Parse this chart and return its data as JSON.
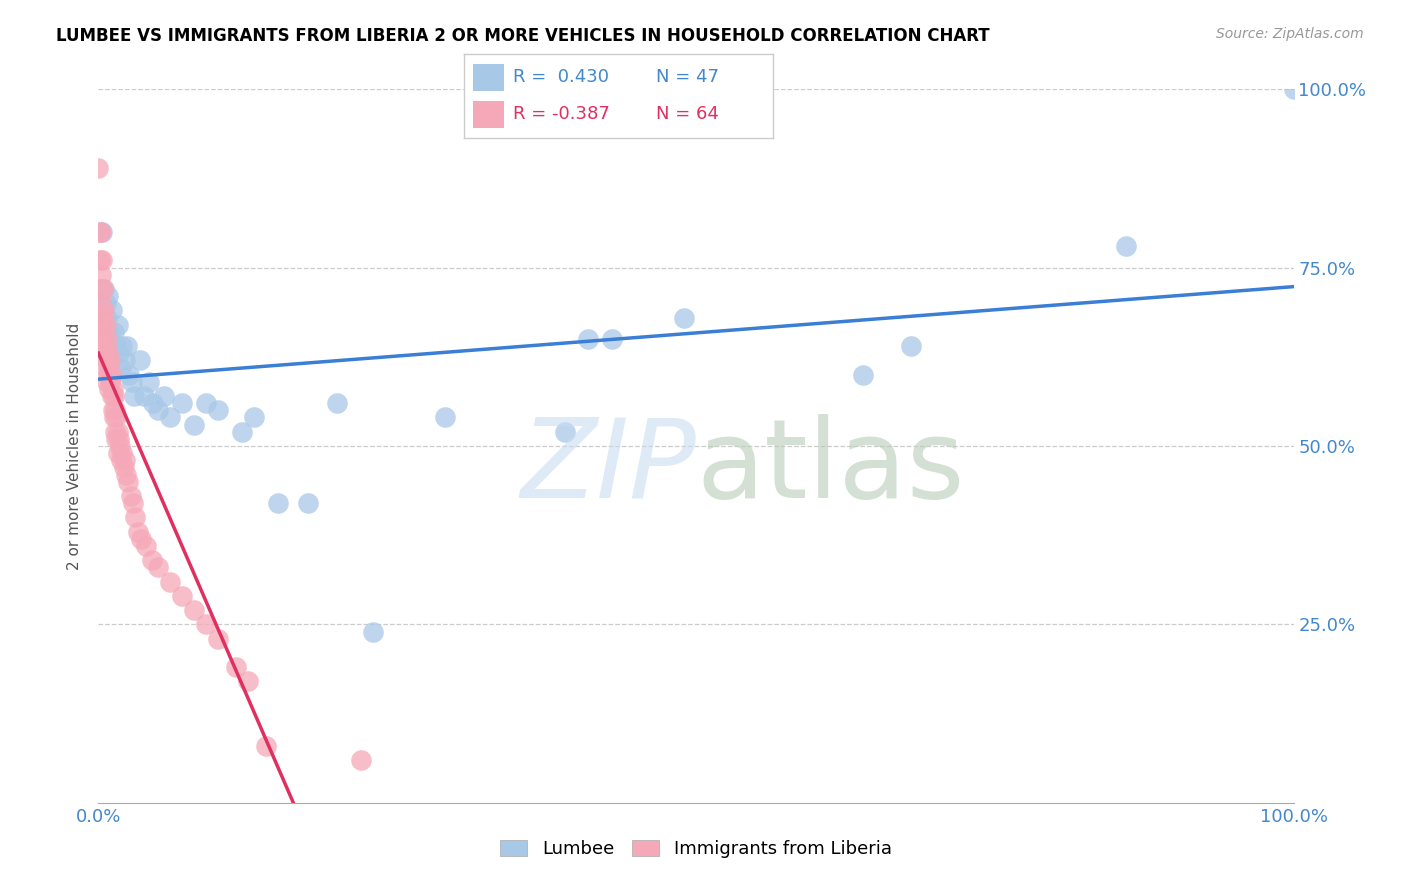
{
  "title": "LUMBEE VS IMMIGRANTS FROM LIBERIA 2 OR MORE VEHICLES IN HOUSEHOLD CORRELATION CHART",
  "source": "Source: ZipAtlas.com",
  "ylabel": "2 or more Vehicles in Household",
  "xlim": [
    0,
    1
  ],
  "ylim": [
    0,
    1
  ],
  "blue_color": "#a8c8e8",
  "pink_color": "#f5a8b8",
  "blue_line_color": "#3a7fd5",
  "pink_line_color": "#e03060",
  "pink_line_dash_color": "#d0a0b0",
  "watermark_zip": "ZIP",
  "watermark_atlas": "atlas",
  "blue_scatter": [
    [
      0.001,
      0.72
    ],
    [
      0.003,
      0.8
    ],
    [
      0.004,
      0.67
    ],
    [
      0.005,
      0.72
    ],
    [
      0.006,
      0.7
    ],
    [
      0.007,
      0.68
    ],
    [
      0.008,
      0.71
    ],
    [
      0.009,
      0.66
    ],
    [
      0.01,
      0.65
    ],
    [
      0.011,
      0.69
    ],
    [
      0.013,
      0.66
    ],
    [
      0.015,
      0.64
    ],
    [
      0.016,
      0.67
    ],
    [
      0.017,
      0.63
    ],
    [
      0.019,
      0.61
    ],
    [
      0.02,
      0.64
    ],
    [
      0.022,
      0.62
    ],
    [
      0.024,
      0.64
    ],
    [
      0.026,
      0.6
    ],
    [
      0.028,
      0.59
    ],
    [
      0.03,
      0.57
    ],
    [
      0.035,
      0.62
    ],
    [
      0.038,
      0.57
    ],
    [
      0.042,
      0.59
    ],
    [
      0.046,
      0.56
    ],
    [
      0.05,
      0.55
    ],
    [
      0.055,
      0.57
    ],
    [
      0.06,
      0.54
    ],
    [
      0.07,
      0.56
    ],
    [
      0.08,
      0.53
    ],
    [
      0.09,
      0.56
    ],
    [
      0.1,
      0.55
    ],
    [
      0.12,
      0.52
    ],
    [
      0.13,
      0.54
    ],
    [
      0.15,
      0.42
    ],
    [
      0.175,
      0.42
    ],
    [
      0.2,
      0.56
    ],
    [
      0.23,
      0.24
    ],
    [
      0.29,
      0.54
    ],
    [
      0.39,
      0.52
    ],
    [
      0.41,
      0.65
    ],
    [
      0.43,
      0.65
    ],
    [
      0.49,
      0.68
    ],
    [
      0.64,
      0.6
    ],
    [
      0.68,
      0.64
    ],
    [
      0.86,
      0.78
    ],
    [
      1.0,
      1.0
    ]
  ],
  "pink_scatter": [
    [
      0.0,
      0.89
    ],
    [
      0.001,
      0.8
    ],
    [
      0.001,
      0.76
    ],
    [
      0.002,
      0.8
    ],
    [
      0.002,
      0.74
    ],
    [
      0.002,
      0.7
    ],
    [
      0.003,
      0.76
    ],
    [
      0.003,
      0.72
    ],
    [
      0.003,
      0.68
    ],
    [
      0.004,
      0.72
    ],
    [
      0.004,
      0.68
    ],
    [
      0.004,
      0.65
    ],
    [
      0.005,
      0.69
    ],
    [
      0.005,
      0.66
    ],
    [
      0.005,
      0.63
    ],
    [
      0.006,
      0.67
    ],
    [
      0.006,
      0.64
    ],
    [
      0.006,
      0.61
    ],
    [
      0.007,
      0.65
    ],
    [
      0.007,
      0.62
    ],
    [
      0.007,
      0.59
    ],
    [
      0.008,
      0.63
    ],
    [
      0.008,
      0.6
    ],
    [
      0.009,
      0.61
    ],
    [
      0.009,
      0.58
    ],
    [
      0.01,
      0.62
    ],
    [
      0.01,
      0.59
    ],
    [
      0.011,
      0.6
    ],
    [
      0.011,
      0.57
    ],
    [
      0.012,
      0.58
    ],
    [
      0.012,
      0.55
    ],
    [
      0.013,
      0.57
    ],
    [
      0.013,
      0.54
    ],
    [
      0.014,
      0.55
    ],
    [
      0.014,
      0.52
    ],
    [
      0.015,
      0.54
    ],
    [
      0.015,
      0.51
    ],
    [
      0.016,
      0.52
    ],
    [
      0.016,
      0.49
    ],
    [
      0.017,
      0.51
    ],
    [
      0.018,
      0.5
    ],
    [
      0.019,
      0.48
    ],
    [
      0.02,
      0.49
    ],
    [
      0.021,
      0.47
    ],
    [
      0.022,
      0.48
    ],
    [
      0.023,
      0.46
    ],
    [
      0.025,
      0.45
    ],
    [
      0.027,
      0.43
    ],
    [
      0.029,
      0.42
    ],
    [
      0.031,
      0.4
    ],
    [
      0.033,
      0.38
    ],
    [
      0.036,
      0.37
    ],
    [
      0.04,
      0.36
    ],
    [
      0.045,
      0.34
    ],
    [
      0.05,
      0.33
    ],
    [
      0.06,
      0.31
    ],
    [
      0.07,
      0.29
    ],
    [
      0.08,
      0.27
    ],
    [
      0.09,
      0.25
    ],
    [
      0.1,
      0.23
    ],
    [
      0.115,
      0.19
    ],
    [
      0.125,
      0.17
    ],
    [
      0.14,
      0.08
    ],
    [
      0.22,
      0.06
    ]
  ],
  "figsize": [
    14.06,
    8.92
  ],
  "dpi": 100
}
